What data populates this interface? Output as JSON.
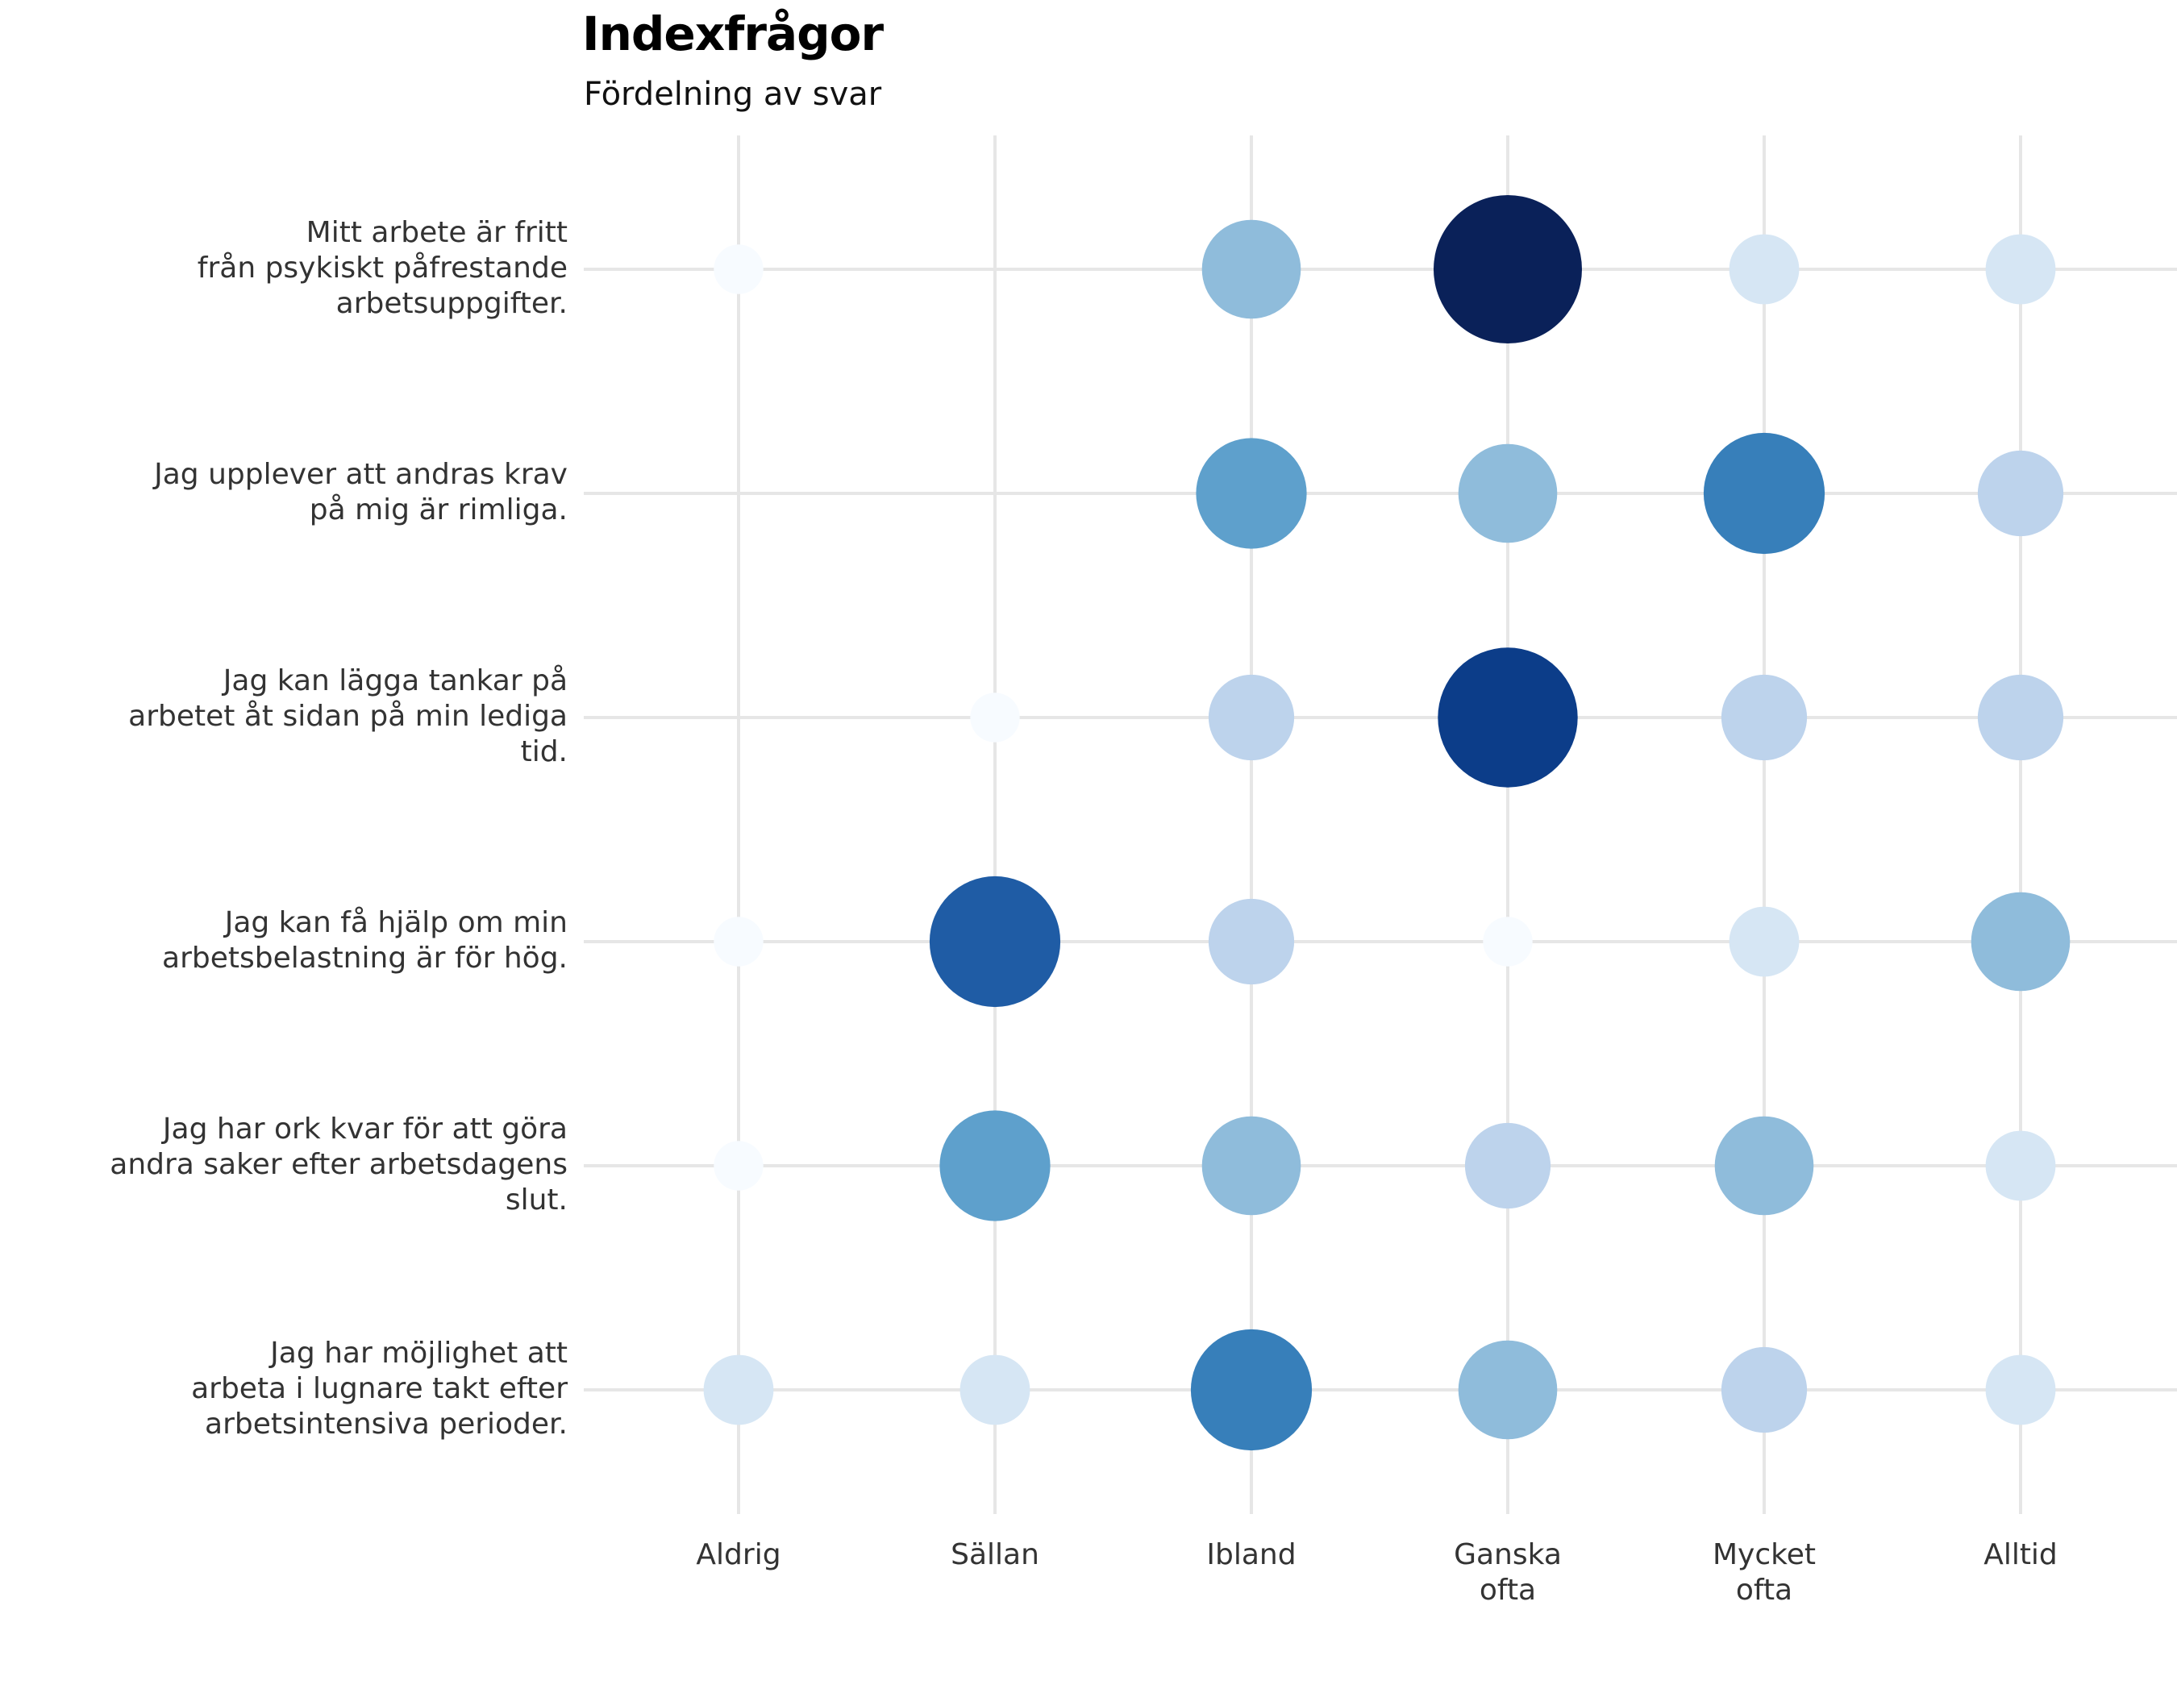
{
  "chart_data": {
    "type": "scatter",
    "title": "Indexfrågor",
    "subtitle": "Fördelning av svar",
    "xlabel": "",
    "ylabel": "",
    "categories": [
      "Aldrig",
      "Sällan",
      "Ibland",
      "Ganska ofta",
      "Mycket ofta",
      "Alltid"
    ],
    "category_labels": [
      [
        "Aldrig"
      ],
      [
        "Sällan"
      ],
      [
        "Ibland"
      ],
      [
        "Ganska",
        "ofta"
      ],
      [
        "Mycket",
        "ofta"
      ],
      [
        "Alltid"
      ]
    ],
    "rows": [
      {
        "label_lines": [
          "Mitt arbete är fritt",
          "från psykiskt påfrestande",
          "arbetsuppgifter."
        ],
        "values": [
          1,
          null,
          4,
          9,
          2,
          2
        ]
      },
      {
        "label_lines": [
          "Jag upplever att andras krav",
          "på mig är rimliga."
        ],
        "values": [
          null,
          null,
          5,
          4,
          6,
          3
        ]
      },
      {
        "label_lines": [
          "Jag kan lägga tankar på",
          "arbetet åt sidan på min lediga",
          "tid."
        ],
        "values": [
          null,
          1,
          3,
          8,
          3,
          3
        ]
      },
      {
        "label_lines": [
          "Jag kan få hjälp om min",
          "arbetsbelastning är för hög."
        ],
        "values": [
          1,
          7,
          3,
          1,
          2,
          4
        ]
      },
      {
        "label_lines": [
          "Jag har ork kvar för att göra",
          "andra saker efter arbetsdagens",
          "slut."
        ],
        "values": [
          1,
          5,
          4,
          3,
          4,
          2
        ]
      },
      {
        "label_lines": [
          "Jag har möjlighet att",
          "arbeta i lugnare takt efter",
          "arbetsintensiva perioder."
        ],
        "values": [
          2,
          2,
          6,
          4,
          3,
          2
        ]
      }
    ],
    "grid": true,
    "legend": "none",
    "color_scale": [
      "#f7fbff",
      "#d6e6f4",
      "#bdd3ec",
      "#8fbcdb",
      "#5ea0cc",
      "#377fba",
      "#1f5ca5",
      "#0c3d89",
      "#0a2159"
    ]
  }
}
